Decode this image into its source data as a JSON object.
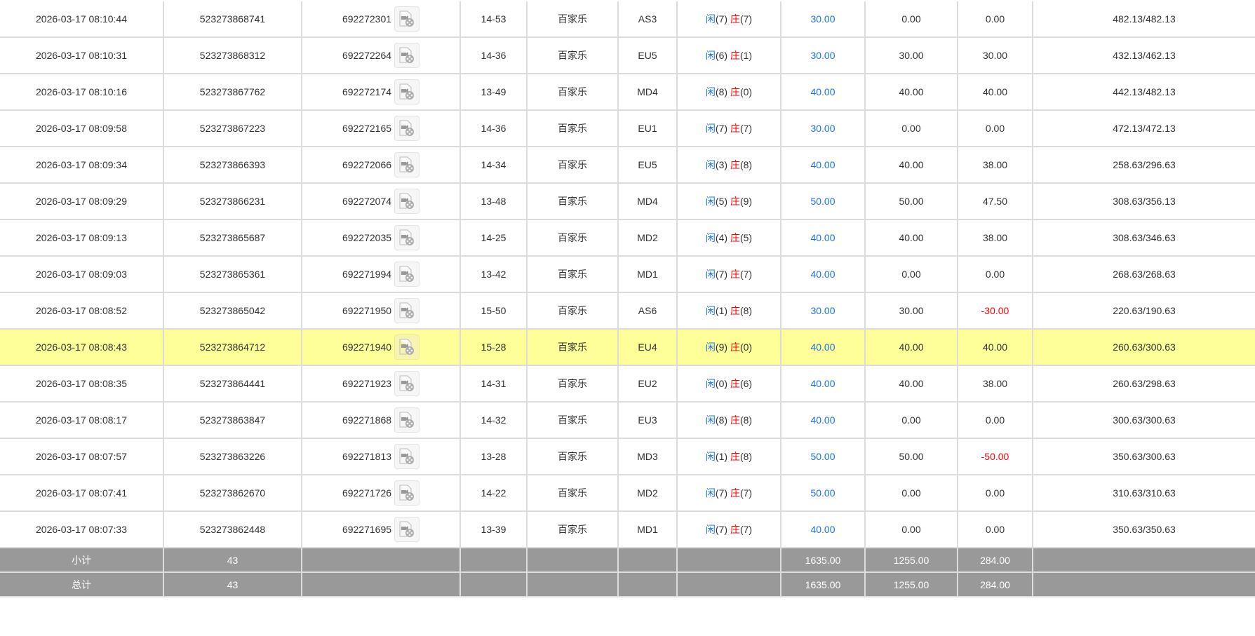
{
  "colors": {
    "player": "#1a73e8",
    "banker": "#ff0000",
    "highlight": "#ffff99",
    "summary_bg": "#999999"
  },
  "rows": [
    {
      "time": "2026-03-17 08:10:44",
      "bet_id": "523273868741",
      "round_id": "692272301",
      "shoe": "14-53",
      "game": "百家乐",
      "table": "AS3",
      "player_label": "闲",
      "player": "(7)",
      "banker_label": "庄",
      "banker": "(7)",
      "bet": "30.00",
      "valid": "0.00",
      "win": "0.00",
      "balance": "482.13/482.13"
    },
    {
      "time": "2026-03-17 08:10:31",
      "bet_id": "523273868312",
      "round_id": "692272264",
      "shoe": "14-36",
      "game": "百家乐",
      "table": "EU5",
      "player_label": "闲",
      "player": "(6)",
      "banker_label": "庄",
      "banker": "(1)",
      "bet": "30.00",
      "valid": "30.00",
      "win": "30.00",
      "balance": "432.13/462.13"
    },
    {
      "time": "2026-03-17 08:10:16",
      "bet_id": "523273867762",
      "round_id": "692272174",
      "shoe": "13-49",
      "game": "百家乐",
      "table": "MD4",
      "player_label": "闲",
      "player": "(8)",
      "banker_label": "庄",
      "banker": "(0)",
      "bet": "40.00",
      "valid": "40.00",
      "win": "40.00",
      "balance": "442.13/482.13"
    },
    {
      "time": "2026-03-17 08:09:58",
      "bet_id": "523273867223",
      "round_id": "692272165",
      "shoe": "14-36",
      "game": "百家乐",
      "table": "EU1",
      "player_label": "闲",
      "player": "(7)",
      "banker_label": "庄",
      "banker": "(7)",
      "bet": "30.00",
      "valid": "0.00",
      "win": "0.00",
      "balance": "472.13/472.13"
    },
    {
      "time": "2026-03-17 08:09:34",
      "bet_id": "523273866393",
      "round_id": "692272066",
      "shoe": "14-34",
      "game": "百家乐",
      "table": "EU5",
      "player_label": "闲",
      "player": "(3)",
      "banker_label": "庄",
      "banker": "(8)",
      "bet": "40.00",
      "valid": "40.00",
      "win": "38.00",
      "balance": "258.63/296.63"
    },
    {
      "time": "2026-03-17 08:09:29",
      "bet_id": "523273866231",
      "round_id": "692272074",
      "shoe": "13-48",
      "game": "百家乐",
      "table": "MD4",
      "player_label": "闲",
      "player": "(5)",
      "banker_label": "庄",
      "banker": "(9)",
      "bet": "50.00",
      "valid": "50.00",
      "win": "47.50",
      "balance": "308.63/356.13"
    },
    {
      "time": "2026-03-17 08:09:13",
      "bet_id": "523273865687",
      "round_id": "692272035",
      "shoe": "14-25",
      "game": "百家乐",
      "table": "MD2",
      "player_label": "闲",
      "player": "(4)",
      "banker_label": "庄",
      "banker": "(5)",
      "bet": "40.00",
      "valid": "40.00",
      "win": "38.00",
      "balance": "308.63/346.63"
    },
    {
      "time": "2026-03-17 08:09:03",
      "bet_id": "523273865361",
      "round_id": "692271994",
      "shoe": "13-42",
      "game": "百家乐",
      "table": "MD1",
      "player_label": "闲",
      "player": "(7)",
      "banker_label": "庄",
      "banker": "(7)",
      "bet": "40.00",
      "valid": "0.00",
      "win": "0.00",
      "balance": "268.63/268.63"
    },
    {
      "time": "2026-03-17 08:08:52",
      "bet_id": "523273865042",
      "round_id": "692271950",
      "shoe": "15-50",
      "game": "百家乐",
      "table": "AS6",
      "player_label": "闲",
      "player": "(1)",
      "banker_label": "庄",
      "banker": "(8)",
      "bet": "30.00",
      "valid": "30.00",
      "win": "-30.00",
      "balance": "220.63/190.63"
    },
    {
      "time": "2026-03-17 08:08:43",
      "bet_id": "523273864712",
      "round_id": "692271940",
      "shoe": "15-28",
      "game": "百家乐",
      "table": "EU4",
      "player_label": "闲",
      "player": "(9)",
      "banker_label": "庄",
      "banker": "(0)",
      "bet": "40.00",
      "valid": "40.00",
      "win": "40.00",
      "balance": "260.63/300.63",
      "highlighted": true
    },
    {
      "time": "2026-03-17 08:08:35",
      "bet_id": "523273864441",
      "round_id": "692271923",
      "shoe": "14-31",
      "game": "百家乐",
      "table": "EU2",
      "player_label": "闲",
      "player": "(0)",
      "banker_label": "庄",
      "banker": "(6)",
      "bet": "40.00",
      "valid": "40.00",
      "win": "38.00",
      "balance": "260.63/298.63"
    },
    {
      "time": "2026-03-17 08:08:17",
      "bet_id": "523273863847",
      "round_id": "692271868",
      "shoe": "14-32",
      "game": "百家乐",
      "table": "EU3",
      "player_label": "闲",
      "player": "(8)",
      "banker_label": "庄",
      "banker": "(8)",
      "bet": "40.00",
      "valid": "0.00",
      "win": "0.00",
      "balance": "300.63/300.63"
    },
    {
      "time": "2026-03-17 08:07:57",
      "bet_id": "523273863226",
      "round_id": "692271813",
      "shoe": "13-28",
      "game": "百家乐",
      "table": "MD3",
      "player_label": "闲",
      "player": "(1)",
      "banker_label": "庄",
      "banker": "(8)",
      "bet": "50.00",
      "valid": "50.00",
      "win": "-50.00",
      "balance": "350.63/300.63"
    },
    {
      "time": "2026-03-17 08:07:41",
      "bet_id": "523273862670",
      "round_id": "692271726",
      "shoe": "14-22",
      "game": "百家乐",
      "table": "MD2",
      "player_label": "闲",
      "player": "(7)",
      "banker_label": "庄",
      "banker": "(7)",
      "bet": "50.00",
      "valid": "0.00",
      "win": "0.00",
      "balance": "310.63/310.63"
    },
    {
      "time": "2026-03-17 08:07:33",
      "bet_id": "523273862448",
      "round_id": "692271695",
      "shoe": "13-39",
      "game": "百家乐",
      "table": "MD1",
      "player_label": "闲",
      "player": "(7)",
      "banker_label": "庄",
      "banker": "(7)",
      "bet": "40.00",
      "valid": "0.00",
      "win": "0.00",
      "balance": "350.63/350.63"
    }
  ],
  "subtotal": {
    "label": "小计",
    "count": "43",
    "bet": "1635.00",
    "valid": "1255.00",
    "win": "284.00"
  },
  "total": {
    "label": "总计",
    "count": "43",
    "bet": "1635.00",
    "valid": "1255.00",
    "win": "284.00"
  }
}
